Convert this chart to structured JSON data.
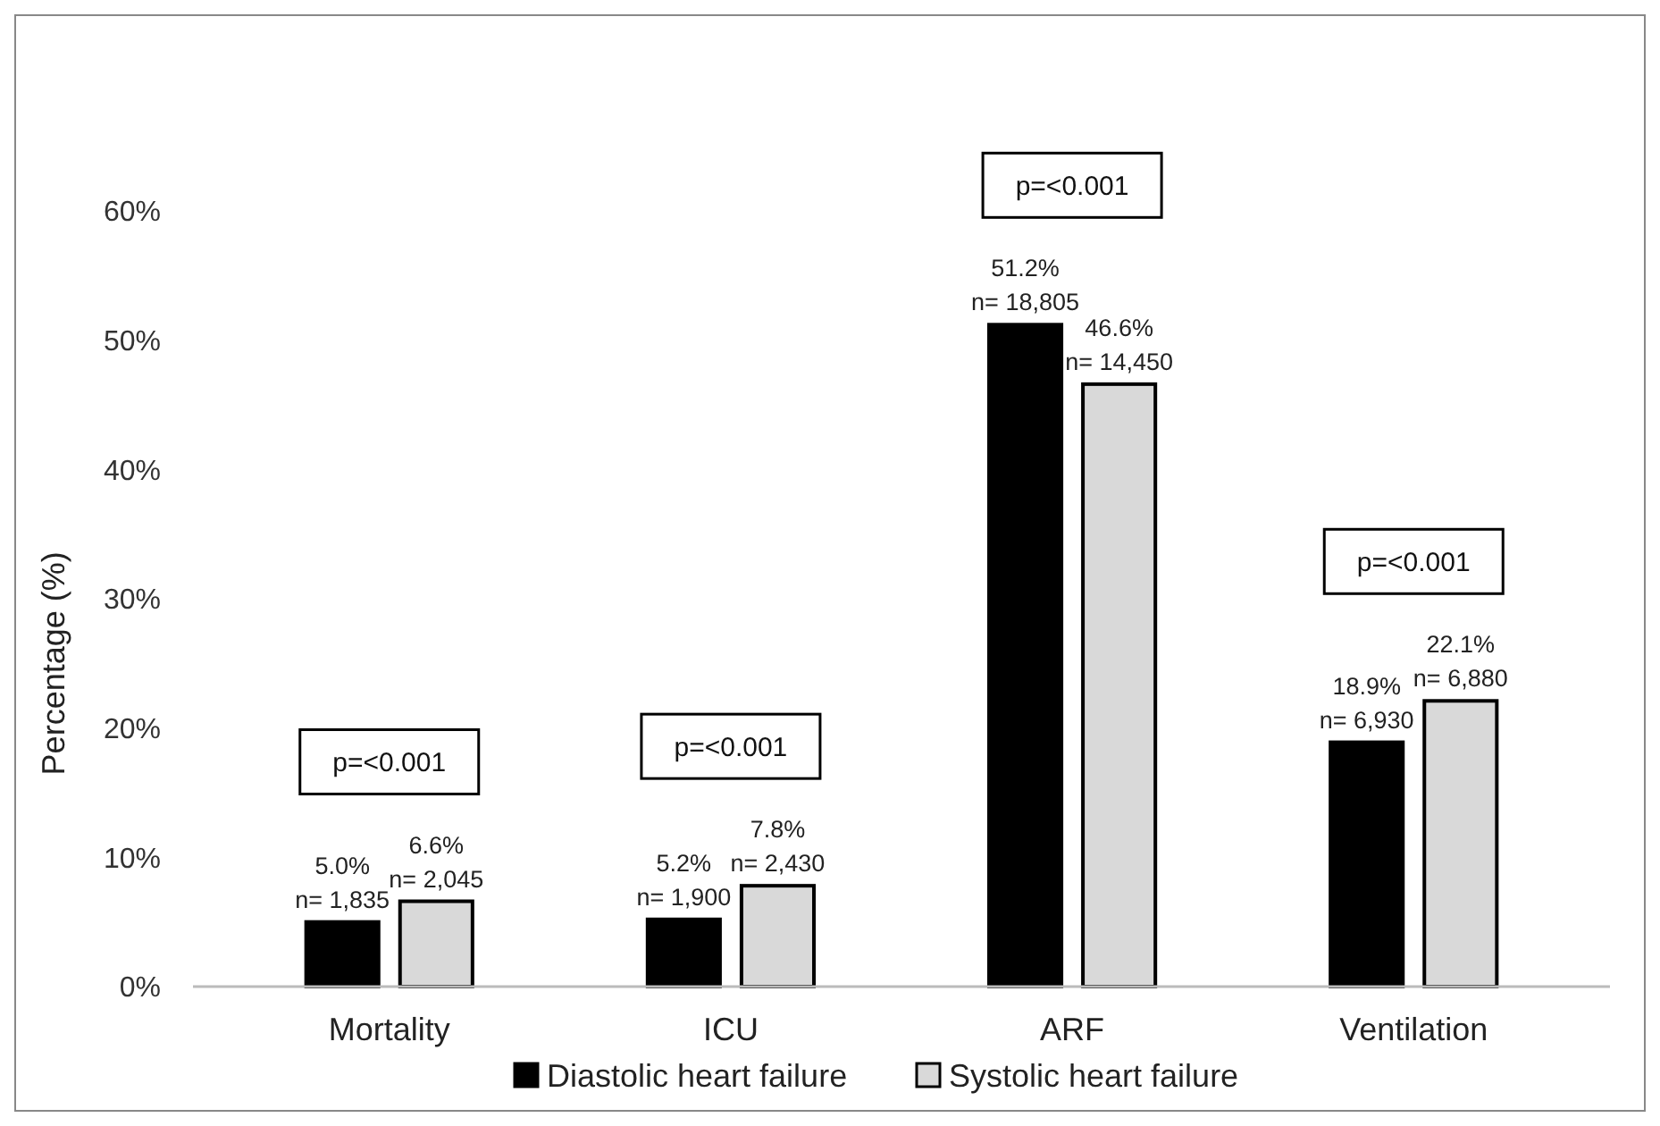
{
  "chart_data": {
    "type": "bar",
    "ylabel": "Percentage (%)",
    "categories": [
      "Mortality",
      "ICU",
      "ARF",
      "Ventilation"
    ],
    "series": [
      {
        "name": "Diastolic heart failure",
        "color": "#000000",
        "values": [
          5.0,
          5.2,
          51.2,
          18.9
        ],
        "value_labels": [
          "5.0%\nn= 1,835",
          "5.2%\nn= 1,900",
          "51.2%\nn= 18,805",
          "18.9%\nn= 6,930"
        ]
      },
      {
        "name": "Systolic heart failure",
        "color": "#d9d9d9",
        "values": [
          6.6,
          7.8,
          46.6,
          22.1
        ],
        "value_labels": [
          "6.6%\nn= 2,045",
          "7.8%\nn= 2,430",
          "46.6%\nn= 14,450",
          "22.1%\nn= 6,880"
        ]
      }
    ],
    "ylim": [
      0,
      60
    ],
    "yticks": [
      {
        "value": 0,
        "label": "0%"
      },
      {
        "value": 10,
        "label": "10%"
      },
      {
        "value": 20,
        "label": "20%"
      },
      {
        "value": 30,
        "label": "30%"
      },
      {
        "value": 40,
        "label": "40%"
      },
      {
        "value": 50,
        "label": "50%"
      },
      {
        "value": 60,
        "label": "60%"
      }
    ],
    "annotations": [
      "p=<0.001",
      "p=<0.001",
      "p=<0.001",
      "p=<0.001"
    ],
    "grid": false,
    "legend": "bottom"
  }
}
